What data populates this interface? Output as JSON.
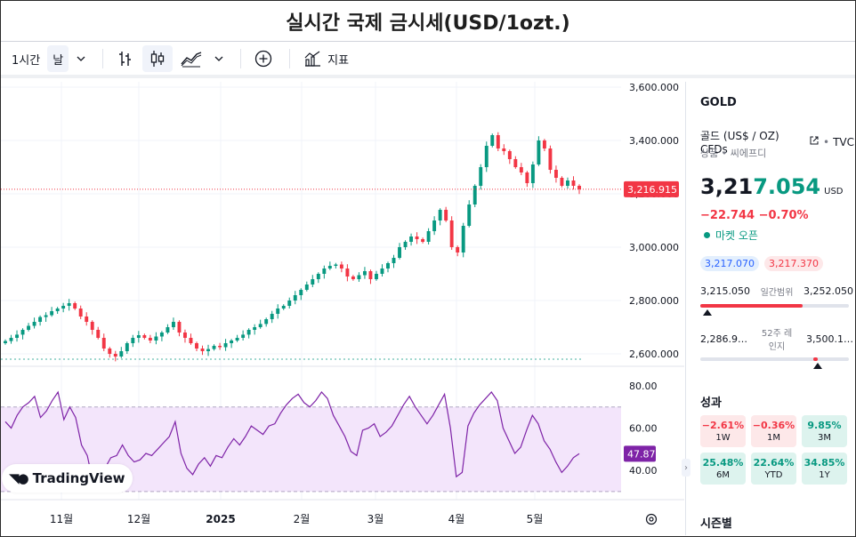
{
  "page_title": "실시간 국제 금시세(USD/1ozt.)",
  "toolbar": {
    "interval_label": "1시간",
    "timeframe_label": "날",
    "indicators_label": "지표",
    "icons": [
      "bar-chart-icon",
      "candle-chart-icon",
      "area-chart-icon",
      "chevron-down-icon",
      "add-circle-icon",
      "indicators-icon"
    ]
  },
  "colors": {
    "up": "#089981",
    "down": "#f23645",
    "rsi_line": "#7e23a7",
    "rsi_fill": "#f3e5fb",
    "price_line": "#f23645"
  },
  "price_axis": {
    "ticks": [
      "3,600.000",
      "3,400.000",
      "3,200.000",
      "3,000.000",
      "2,800.000",
      "2,600.000"
    ],
    "current_label": "3,216.915"
  },
  "rsi_axis": {
    "ticks": [
      "80.00",
      "60.00",
      "40.00"
    ],
    "current_label": "47.87"
  },
  "time_axis": {
    "labels": [
      "11월",
      "12월",
      "2025",
      "2월",
      "3월",
      "4월",
      "5월"
    ]
  },
  "logo_text": "TradingView",
  "chart_data": {
    "type": "candlestick",
    "title": "실시간 국제 금시세(USD/1ozt.)",
    "symbol": "GOLD",
    "ylim": [
      2560,
      3610
    ],
    "current_price": 3216.915,
    "x_labels": [
      "11월",
      "12월",
      "2025",
      "2월",
      "3월",
      "4월",
      "5월"
    ],
    "close_series": [
      2648,
      2660,
      2672,
      2690,
      2705,
      2720,
      2738,
      2745,
      2760,
      2770,
      2780,
      2790,
      2770,
      2740,
      2720,
      2690,
      2660,
      2620,
      2600,
      2590,
      2610,
      2640,
      2660,
      2670,
      2660,
      2650,
      2665,
      2680,
      2700,
      2720,
      2680,
      2660,
      2640,
      2620,
      2610,
      2618,
      2630,
      2625,
      2640,
      2650,
      2660,
      2672,
      2690,
      2700,
      2712,
      2730,
      2750,
      2770,
      2780,
      2800,
      2820,
      2840,
      2860,
      2880,
      2900,
      2920,
      2930,
      2935,
      2920,
      2890,
      2880,
      2895,
      2910,
      2880,
      2900,
      2920,
      2940,
      2960,
      3000,
      3020,
      3040,
      3030,
      3020,
      3060,
      3100,
      3140,
      3100,
      3000,
      2980,
      3080,
      3160,
      3230,
      3300,
      3380,
      3420,
      3370,
      3360,
      3330,
      3300,
      3280,
      3240,
      3310,
      3400,
      3370,
      3290,
      3260,
      3230,
      3250,
      3230,
      3217
    ],
    "rsi": {
      "name": "RSI",
      "ylim": [
        27,
        85
      ],
      "band": [
        30,
        70
      ],
      "values": [
        63,
        60,
        66,
        70,
        72,
        75,
        65,
        68,
        73,
        77,
        64,
        70,
        65,
        52,
        47,
        34,
        32,
        41,
        46,
        47,
        52,
        47,
        44,
        45,
        48,
        47,
        50,
        53,
        56,
        63,
        48,
        41,
        38,
        43,
        46,
        42,
        47,
        46,
        51,
        55,
        52,
        56,
        61,
        59,
        57,
        61,
        62,
        67,
        71,
        74,
        76,
        72,
        70,
        73,
        77,
        74,
        66,
        61,
        56,
        49,
        47,
        59,
        60,
        62,
        56,
        58,
        61,
        66,
        71,
        75,
        70,
        66,
        62,
        66,
        71,
        76,
        60,
        37,
        39,
        61,
        67,
        71,
        74,
        77,
        73,
        60,
        54,
        48,
        51,
        59,
        66,
        62,
        54,
        50,
        44,
        39,
        42,
        46,
        47.87
      ]
    }
  },
  "sidebar": {
    "symbol": "GOLD",
    "name": "골드 (US$ / OZ) CFDs",
    "source": "TVC",
    "type": "상품 • 씨에프디",
    "price_prefix": "3,21",
    "price_highlight": "7.054",
    "currency": "USD",
    "change": "−22.744  −0.70%",
    "market_status": "마켓 오픈",
    "bid": "3,217.070",
    "ask": "3,217.370",
    "day_range": {
      "low": "3,215.050",
      "label": "일간범위",
      "high": "3,252.050",
      "position": 0.0
    },
    "year_range": {
      "low": "2,286.9…",
      "label": "52주 레인지",
      "high": "3,500.1…",
      "position": 0.76
    },
    "performance_title": "성과",
    "performance": [
      {
        "value": "−2.61%",
        "label": "1W",
        "tone": "neg"
      },
      {
        "value": "−0.36%",
        "label": "1M",
        "tone": "neg"
      },
      {
        "value": "9.85%",
        "label": "3M",
        "tone": "pos"
      },
      {
        "value": "25.48%",
        "label": "6M",
        "tone": "pos"
      },
      {
        "value": "22.64%",
        "label": "YTD",
        "tone": "pos"
      },
      {
        "value": "34.85%",
        "label": "1Y",
        "tone": "pos"
      }
    ],
    "seasonal_title": "시즌별"
  }
}
